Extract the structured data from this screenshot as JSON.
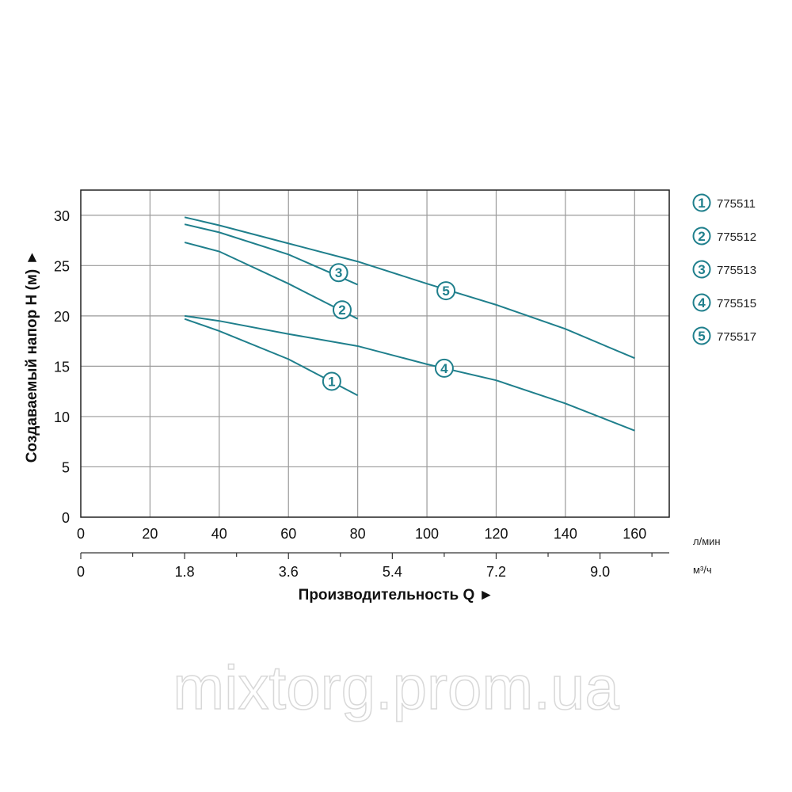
{
  "chart_data": {
    "type": "line",
    "ylabel": "Создаваемый напор H (м) ►",
    "xlabel": "Производительность Q ►",
    "xlim": [
      0,
      170
    ],
    "ylim": [
      0,
      32.5
    ],
    "grid": true,
    "x_ticks": [
      0,
      20,
      40,
      60,
      80,
      100,
      120,
      140,
      160
    ],
    "x_unit": "л/мин",
    "x2_ticks": [
      "0",
      "1.8",
      "3.6",
      "5.4",
      "7.2",
      "9.0"
    ],
    "x2_unit": "м³/ч",
    "y_ticks": [
      0,
      5,
      10,
      15,
      20,
      25,
      30
    ],
    "legend_position": "right",
    "color": "#1f7f8c",
    "series": [
      {
        "id": "1",
        "name": "775511",
        "x": [
          30,
          40,
          60,
          80
        ],
        "y": [
          19.7,
          18.5,
          15.7,
          12.1
        ],
        "label_at": [
          72.5,
          13.5
        ]
      },
      {
        "id": "2",
        "name": "775512",
        "x": [
          30,
          40,
          60,
          80
        ],
        "y": [
          27.3,
          26.4,
          23.2,
          19.7
        ],
        "label_at": [
          75.5,
          20.6
        ]
      },
      {
        "id": "3",
        "name": "775513",
        "x": [
          30,
          40,
          60,
          80
        ],
        "y": [
          29.1,
          28.3,
          26.1,
          23.1
        ],
        "label_at": [
          74.5,
          24.3
        ]
      },
      {
        "id": "4",
        "name": "775515",
        "x": [
          30,
          40,
          60,
          80,
          100,
          120,
          140,
          160
        ],
        "y": [
          20.0,
          19.5,
          18.2,
          17.0,
          15.2,
          13.6,
          11.3,
          8.6
        ],
        "label_at": [
          105,
          14.8
        ]
      },
      {
        "id": "5",
        "name": "775517",
        "x": [
          30,
          40,
          60,
          80,
          100,
          120,
          140,
          160
        ],
        "y": [
          29.8,
          29.0,
          27.2,
          25.4,
          23.2,
          21.1,
          18.7,
          15.8
        ],
        "label_at": [
          105.5,
          22.5
        ]
      }
    ]
  },
  "watermark": "mixtorg.prom.ua"
}
